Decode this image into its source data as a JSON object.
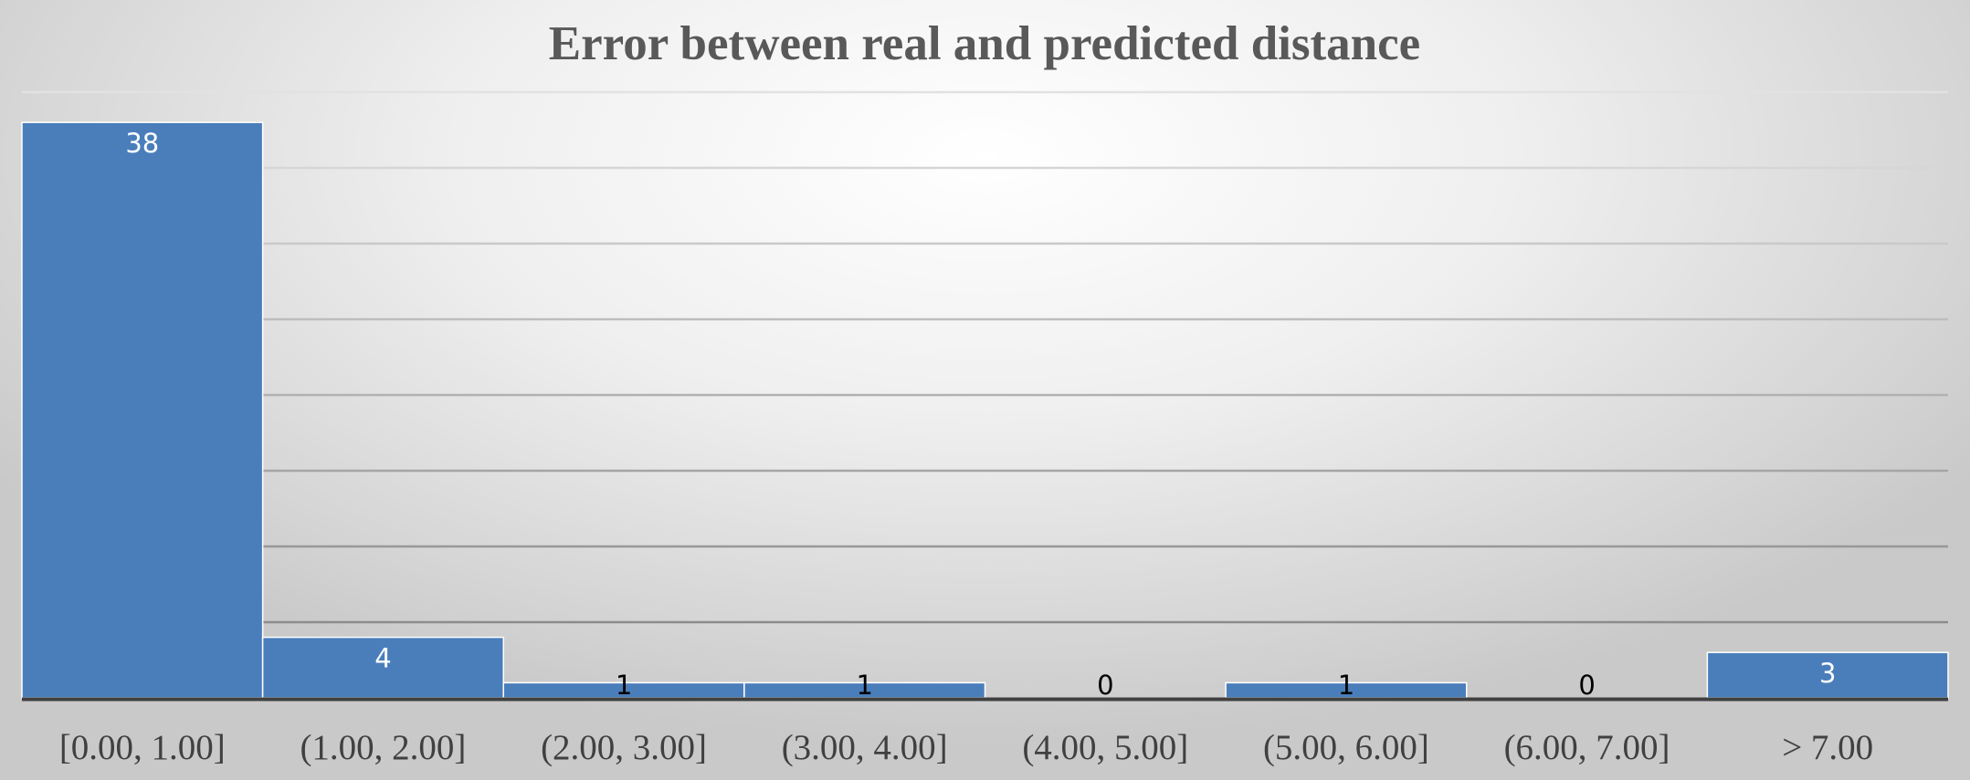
{
  "chart_data": {
    "type": "bar",
    "title": "Error between real and predicted distance",
    "xlabel": "",
    "ylabel": "",
    "categories": [
      "[0.00, 1.00]",
      "(1.00, 2.00]",
      "(2.00, 3.00]",
      "(3.00, 4.00]",
      "(4.00, 5.00]",
      "(5.00, 6.00]",
      "(6.00, 7.00]",
      "> 7.00"
    ],
    "values": [
      38,
      4,
      1,
      1,
      0,
      1,
      0,
      3
    ],
    "ylim": [
      0,
      40
    ],
    "grid": true,
    "legend": "none",
    "data_labels": true,
    "colors": {
      "bar": "#4a7ebb",
      "bar_border": "#ffffff",
      "gridline_top": "#e2e2e2",
      "gridline_bottom": "#8c8c8c",
      "axis": "#404040",
      "label_inside": "#ffffff",
      "label_outside": "#000000"
    }
  }
}
